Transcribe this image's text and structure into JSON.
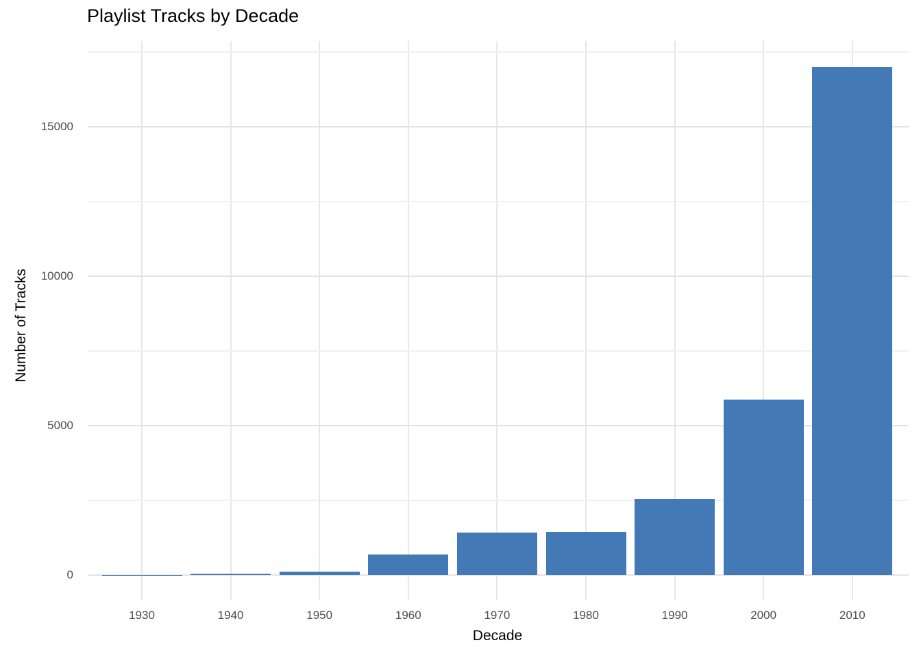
{
  "chart_data": {
    "type": "bar",
    "title": "Playlist Tracks by Decade",
    "xlabel": "Decade",
    "ylabel": "Number of Tracks",
    "categories": [
      "1930",
      "1940",
      "1950",
      "1960",
      "1970",
      "1980",
      "1990",
      "2000",
      "2010"
    ],
    "values": [
      10,
      40,
      110,
      690,
      1420,
      1450,
      2550,
      5870,
      17000
    ],
    "y_major_ticks": [
      0,
      5000,
      10000,
      15000
    ],
    "y_minor_ticks": [
      2500,
      7500,
      12500,
      17500
    ],
    "ylim": [
      0,
      17900
    ],
    "legend": "none",
    "grid": "horizontal major+minor, vertical per category",
    "colors": {
      "bar_fill": "#4379b5",
      "grid_major": "#e3e3e3",
      "grid_minor": "#f0f0f0",
      "axis_text": "#4d4d4d",
      "title_text": "#000000",
      "background": "#ffffff"
    }
  }
}
